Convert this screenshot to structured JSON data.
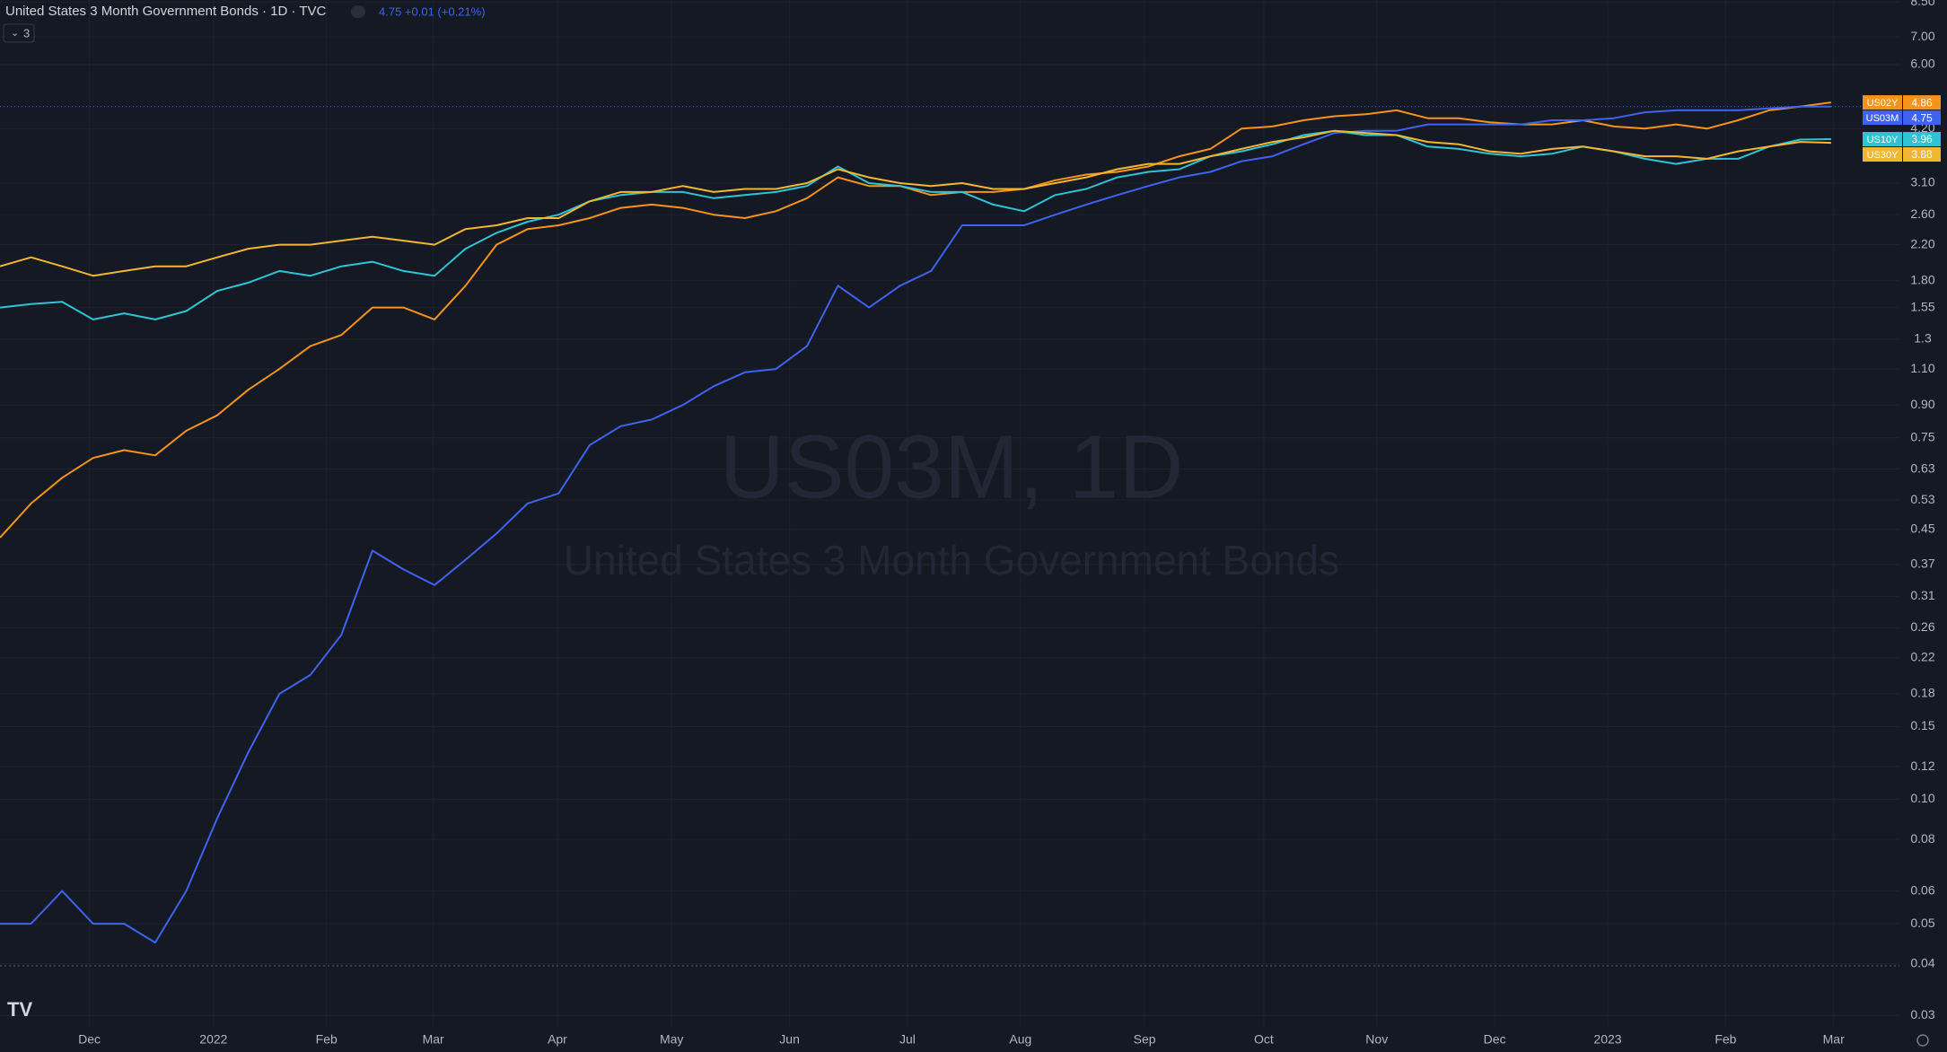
{
  "chart_data": {
    "type": "line",
    "title": "United States 3 Month Government Bonds · 1D · TVC",
    "subtitle": "4.75 +0.01 (+0.21%)",
    "indicator_count": "3",
    "watermark": [
      "US03M, 1D",
      "United States 3 Month Government Bonds"
    ],
    "log_scale": true,
    "grid": true,
    "xlim": [
      0,
      61.2
    ],
    "xticks": [
      {
        "value": 2.88,
        "label": "Dec"
      },
      {
        "value": 6.88,
        "label": "2022"
      },
      {
        "value": 10.52,
        "label": "Feb"
      },
      {
        "value": 13.96,
        "label": "Mar"
      },
      {
        "value": 17.96,
        "label": "Apr"
      },
      {
        "value": 21.64,
        "label": "May"
      },
      {
        "value": 25.44,
        "label": "Jun"
      },
      {
        "value": 29.24,
        "label": "Jul"
      },
      {
        "value": 32.88,
        "label": "Aug"
      },
      {
        "value": 36.88,
        "label": "Sep"
      },
      {
        "value": 40.72,
        "label": "Oct"
      },
      {
        "value": 44.36,
        "label": "Nov"
      },
      {
        "value": 48.16,
        "label": "Dec"
      },
      {
        "value": 51.8,
        "label": "2023"
      },
      {
        "value": 55.6,
        "label": "Feb"
      },
      {
        "value": 59.08,
        "label": "Mar"
      }
    ],
    "ylim": [
      0.028,
      8.6
    ],
    "yticks": [
      {
        "value": 8.5,
        "label": "8.50"
      },
      {
        "value": 7,
        "label": "7.00"
      },
      {
        "value": 6,
        "label": "6.00"
      },
      {
        "value": 4.2,
        "label": "4.20"
      },
      {
        "value": 3.1,
        "label": "3.10"
      },
      {
        "value": 2.6,
        "label": "2.60"
      },
      {
        "value": 2.2,
        "label": "2.20"
      },
      {
        "value": 1.8,
        "label": "1.80"
      },
      1.55,
      1.3,
      {
        "value": 1.1,
        "label": "1.10"
      },
      {
        "value": 0.9,
        "label": "0.90"
      },
      0.75,
      0.63,
      0.53,
      0.45,
      0.37,
      0.31,
      0.26,
      0.22,
      0.18,
      0.15,
      0.12,
      {
        "value": 0.1,
        "label": "0.10"
      },
      {
        "value": 0.08,
        "label": "0.08"
      },
      {
        "value": 0.06,
        "label": "0.06"
      },
      {
        "value": 0.05,
        "label": "0.05"
      },
      {
        "value": 0.04,
        "label": "0.04"
      },
      {
        "value": 0.03,
        "label": "0.03"
      }
    ],
    "series": [
      {
        "name": "US02Y",
        "color": "#f7931a",
        "values": [
          0.43,
          0.52,
          0.6,
          0.67,
          0.7,
          0.68,
          0.78,
          0.85,
          0.98,
          1.1,
          1.25,
          1.33,
          1.55,
          1.55,
          1.45,
          1.75,
          2.2,
          2.4,
          2.45,
          2.55,
          2.7,
          2.75,
          2.7,
          2.6,
          2.55,
          2.65,
          2.85,
          3.2,
          3.05,
          3.05,
          2.9,
          2.95,
          2.95,
          3.0,
          3.15,
          3.25,
          3.3,
          3.4,
          3.6,
          3.75,
          4.2,
          4.25,
          4.4,
          4.5,
          4.55,
          4.65,
          4.45,
          4.45,
          4.35,
          4.3,
          4.3,
          4.4,
          4.25,
          4.2,
          4.3,
          4.2,
          4.4,
          4.65,
          4.75,
          4.86
        ]
      },
      {
        "name": "US03M",
        "color": "#3d63f0",
        "values": [
          0.05,
          0.05,
          0.06,
          0.05,
          0.05,
          0.045,
          0.06,
          0.09,
          0.13,
          0.18,
          0.2,
          0.25,
          0.4,
          0.36,
          0.33,
          0.38,
          0.44,
          0.52,
          0.55,
          0.72,
          0.8,
          0.83,
          0.9,
          1.0,
          1.08,
          1.1,
          1.25,
          1.75,
          1.55,
          1.75,
          1.9,
          2.45,
          2.45,
          2.45,
          2.6,
          2.75,
          2.9,
          3.05,
          3.2,
          3.3,
          3.5,
          3.6,
          3.85,
          4.1,
          4.15,
          4.15,
          4.3,
          4.3,
          4.3,
          4.3,
          4.4,
          4.4,
          4.45,
          4.6,
          4.65,
          4.65,
          4.65,
          4.7,
          4.75,
          4.75
        ]
      },
      {
        "name": "US10Y",
        "color": "#2ec4d6",
        "values": [
          1.55,
          1.58,
          1.6,
          1.45,
          1.5,
          1.45,
          1.52,
          1.7,
          1.78,
          1.9,
          1.85,
          1.95,
          2.0,
          1.9,
          1.85,
          2.15,
          2.35,
          2.5,
          2.6,
          2.8,
          2.9,
          2.95,
          2.95,
          2.85,
          2.9,
          2.95,
          3.05,
          3.4,
          3.1,
          3.05,
          2.95,
          2.95,
          2.75,
          2.65,
          2.9,
          3.0,
          3.2,
          3.3,
          3.35,
          3.6,
          3.7,
          3.85,
          4.05,
          4.15,
          4.05,
          4.05,
          3.8,
          3.75,
          3.65,
          3.6,
          3.65,
          3.8,
          3.7,
          3.55,
          3.45,
          3.55,
          3.55,
          3.8,
          3.95,
          3.96
        ]
      },
      {
        "name": "US30Y",
        "color": "#f2b630",
        "values": [
          1.95,
          2.05,
          1.95,
          1.85,
          1.9,
          1.95,
          1.95,
          2.05,
          2.15,
          2.2,
          2.2,
          2.25,
          2.3,
          2.25,
          2.2,
          2.4,
          2.45,
          2.55,
          2.55,
          2.8,
          2.95,
          2.95,
          3.05,
          2.95,
          3.0,
          3.0,
          3.1,
          3.35,
          3.2,
          3.1,
          3.05,
          3.1,
          3.0,
          3.0,
          3.1,
          3.2,
          3.35,
          3.45,
          3.45,
          3.6,
          3.75,
          3.9,
          4.0,
          4.15,
          4.1,
          4.05,
          3.9,
          3.85,
          3.7,
          3.65,
          3.75,
          3.8,
          3.7,
          3.6,
          3.6,
          3.55,
          3.7,
          3.8,
          3.9,
          3.88
        ]
      }
    ]
  }
}
